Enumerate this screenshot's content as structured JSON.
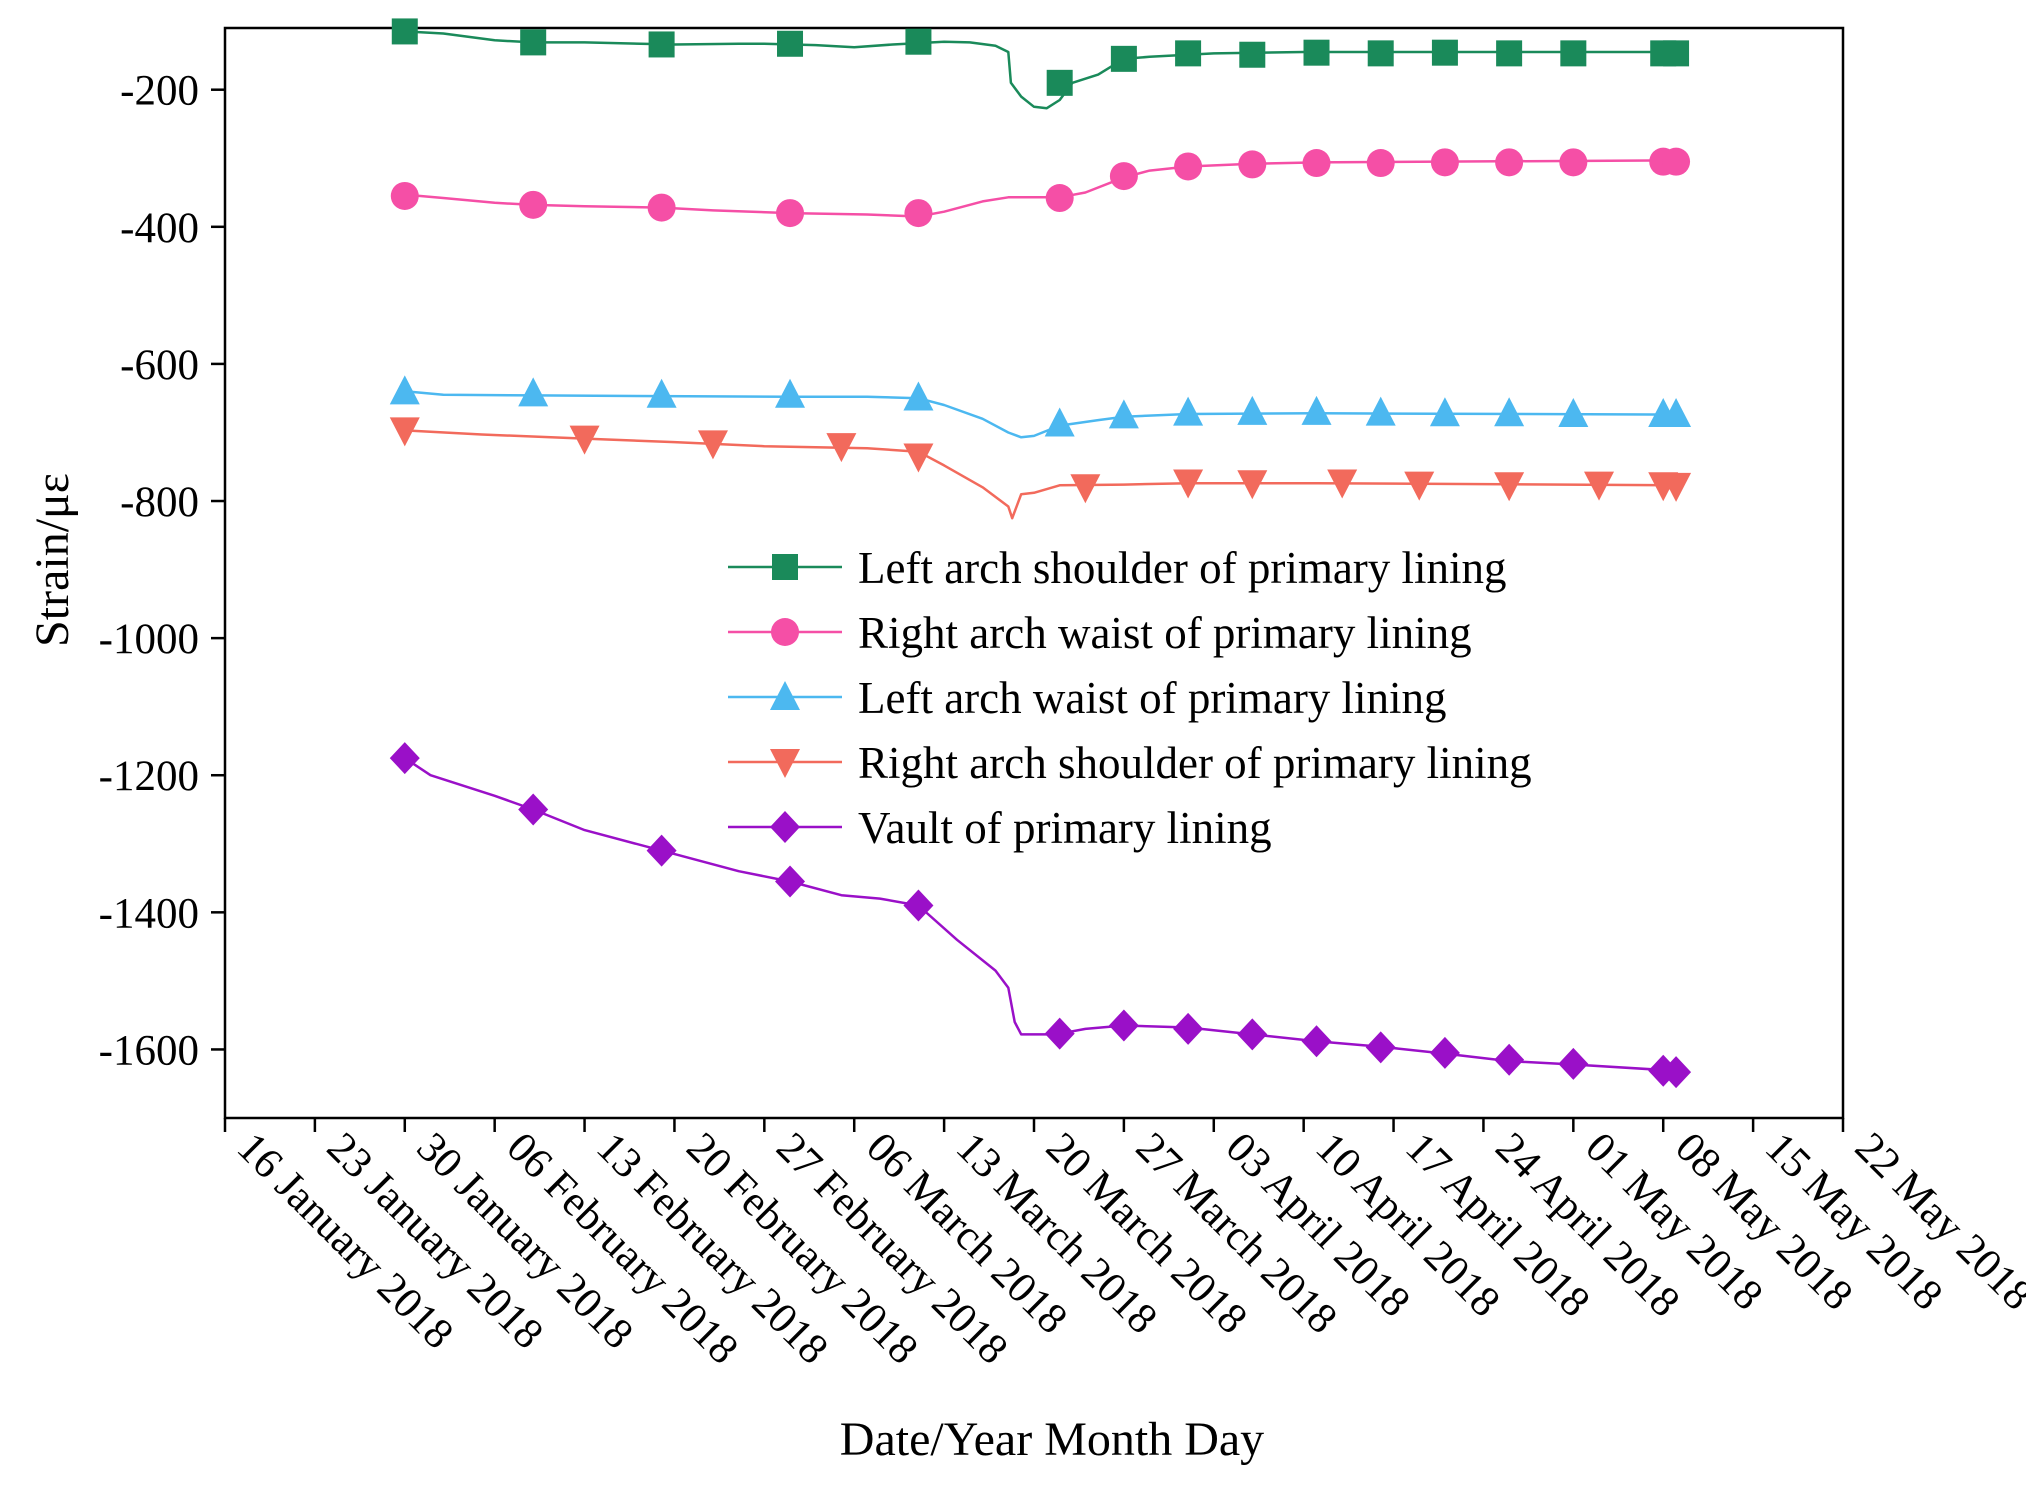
{
  "chart_data": {
    "type": "line",
    "title": "",
    "xlabel": "Date/Year Month Day",
    "ylabel": "Strain/με",
    "x_unit": "days since 16 January 2018",
    "xlim": [
      0,
      126
    ],
    "ylim": [
      -1700,
      -110
    ],
    "x_ticks": [
      {
        "day": 0,
        "label": "16 January 2018"
      },
      {
        "day": 7,
        "label": "23 January 2018"
      },
      {
        "day": 14,
        "label": "30 January 2018"
      },
      {
        "day": 21,
        "label": "06 February 2018"
      },
      {
        "day": 28,
        "label": "13 February 2018"
      },
      {
        "day": 35,
        "label": "20 February 2018"
      },
      {
        "day": 42,
        "label": "27 February 2018"
      },
      {
        "day": 49,
        "label": "06 March 2018"
      },
      {
        "day": 56,
        "label": "13 March 2018"
      },
      {
        "day": 63,
        "label": "20 March 2018"
      },
      {
        "day": 70,
        "label": "27 March 2018"
      },
      {
        "day": 77,
        "label": "03 April 2018"
      },
      {
        "day": 84,
        "label": "10 April 2018"
      },
      {
        "day": 91,
        "label": "17 April 2018"
      },
      {
        "day": 98,
        "label": "24 April 2018"
      },
      {
        "day": 105,
        "label": "01 May 2018"
      },
      {
        "day": 112,
        "label": "08 May 2018"
      },
      {
        "day": 119,
        "label": "15 May 2018"
      },
      {
        "day": 126,
        "label": "22 May 2018"
      }
    ],
    "y_ticks": [
      -200,
      -400,
      -600,
      -800,
      -1000,
      -1200,
      -1400,
      -1600
    ],
    "legend_position": "center-right",
    "series": [
      {
        "name": "Left arch shoulder of primary lining",
        "color": "#1a8a5a",
        "marker": "square",
        "line": [
          [
            14,
            -115
          ],
          [
            17,
            -118
          ],
          [
            21,
            -128
          ],
          [
            24,
            -131
          ],
          [
            28,
            -131
          ],
          [
            35,
            -134
          ],
          [
            40,
            -133
          ],
          [
            42,
            -133
          ],
          [
            46,
            -135
          ],
          [
            49,
            -138
          ],
          [
            52,
            -134
          ],
          [
            56,
            -130
          ],
          [
            58,
            -131
          ],
          [
            60,
            -136
          ],
          [
            61,
            -145
          ],
          [
            61.2,
            -190
          ],
          [
            62,
            -210
          ],
          [
            63,
            -225
          ],
          [
            64,
            -227
          ],
          [
            65,
            -215
          ],
          [
            66,
            -190
          ],
          [
            68,
            -178
          ],
          [
            70,
            -155
          ],
          [
            72,
            -152
          ],
          [
            77,
            -147
          ],
          [
            84,
            -145
          ],
          [
            112,
            -145
          ],
          [
            113,
            -145
          ]
        ],
        "markers": [
          [
            14,
            -115
          ],
          [
            24,
            -131
          ],
          [
            34,
            -134
          ],
          [
            44,
            -133
          ],
          [
            54,
            -130
          ],
          [
            65,
            -190
          ],
          [
            70,
            -155
          ],
          [
            75,
            -147
          ],
          [
            80,
            -149
          ],
          [
            85,
            -146
          ],
          [
            90,
            -147
          ],
          [
            95,
            -146
          ],
          [
            100,
            -147
          ],
          [
            105,
            -147
          ],
          [
            112,
            -147
          ],
          [
            113,
            -147
          ]
        ]
      },
      {
        "name": "Right arch waist of primary lining",
        "color": "#f54fa6",
        "marker": "circle",
        "line": [
          [
            14,
            -353
          ],
          [
            17,
            -358
          ],
          [
            21,
            -365
          ],
          [
            24,
            -368
          ],
          [
            28,
            -370
          ],
          [
            34,
            -372
          ],
          [
            38,
            -376
          ],
          [
            44,
            -380
          ],
          [
            50,
            -382
          ],
          [
            54,
            -385
          ],
          [
            56,
            -378
          ],
          [
            59,
            -363
          ],
          [
            61,
            -357
          ],
          [
            65,
            -357
          ],
          [
            67,
            -350
          ],
          [
            70,
            -328
          ],
          [
            72,
            -318
          ],
          [
            75,
            -312
          ],
          [
            80,
            -308
          ],
          [
            85,
            -306
          ],
          [
            113,
            -303
          ]
        ],
        "markers": [
          [
            14,
            -355
          ],
          [
            24,
            -368
          ],
          [
            34,
            -372
          ],
          [
            44,
            -380
          ],
          [
            54,
            -380
          ],
          [
            65,
            -358
          ],
          [
            70,
            -326
          ],
          [
            75,
            -312
          ],
          [
            80,
            -309
          ],
          [
            85,
            -307
          ],
          [
            90,
            -307
          ],
          [
            95,
            -306
          ],
          [
            100,
            -306
          ],
          [
            105,
            -306
          ],
          [
            112,
            -305
          ],
          [
            113,
            -305
          ]
        ]
      },
      {
        "name": "Left arch waist of primary lining",
        "color": "#4cb8f0",
        "marker": "triangle-up",
        "line": [
          [
            14,
            -640
          ],
          [
            17,
            -645
          ],
          [
            24,
            -646
          ],
          [
            34,
            -647
          ],
          [
            44,
            -648
          ],
          [
            50,
            -648
          ],
          [
            54,
            -650
          ],
          [
            56,
            -660
          ],
          [
            59,
            -680
          ],
          [
            61,
            -700
          ],
          [
            62,
            -707
          ],
          [
            63,
            -705
          ],
          [
            65,
            -690
          ],
          [
            68,
            -682
          ],
          [
            70,
            -677
          ],
          [
            75,
            -673
          ],
          [
            85,
            -672
          ],
          [
            113,
            -674
          ]
        ],
        "markers": [
          [
            14,
            -640
          ],
          [
            24,
            -643
          ],
          [
            34,
            -645
          ],
          [
            44,
            -645
          ],
          [
            54,
            -649
          ],
          [
            65,
            -687
          ],
          [
            70,
            -675
          ],
          [
            75,
            -671
          ],
          [
            80,
            -670
          ],
          [
            85,
            -670
          ],
          [
            90,
            -671
          ],
          [
            95,
            -672
          ],
          [
            100,
            -672
          ],
          [
            105,
            -673
          ],
          [
            112,
            -673
          ],
          [
            113,
            -673
          ]
        ]
      },
      {
        "name": "Right arch shoulder of primary lining",
        "color": "#f26a5c",
        "marker": "triangle-down",
        "line": [
          [
            14,
            -697
          ],
          [
            20,
            -703
          ],
          [
            28,
            -709
          ],
          [
            35,
            -714
          ],
          [
            42,
            -720
          ],
          [
            50,
            -723
          ],
          [
            54,
            -728
          ],
          [
            56,
            -748
          ],
          [
            59,
            -780
          ],
          [
            61,
            -808
          ],
          [
            61.3,
            -825
          ],
          [
            62,
            -790
          ],
          [
            63,
            -788
          ],
          [
            65,
            -777
          ],
          [
            70,
            -776
          ],
          [
            75,
            -774
          ],
          [
            85,
            -774
          ],
          [
            113,
            -777
          ]
        ],
        "markers": [
          [
            14,
            -697
          ],
          [
            28,
            -709
          ],
          [
            38,
            -716
          ],
          [
            48,
            -720
          ],
          [
            54,
            -735
          ],
          [
            67,
            -780
          ],
          [
            75,
            -773
          ],
          [
            80,
            -774
          ],
          [
            87,
            -773
          ],
          [
            93,
            -776
          ],
          [
            100,
            -777
          ],
          [
            107,
            -776
          ],
          [
            112,
            -777
          ],
          [
            113,
            -778
          ]
        ]
      },
      {
        "name": "Vault of primary lining",
        "color": "#9a10c8",
        "marker": "diamond",
        "line": [
          [
            14,
            -1175
          ],
          [
            16,
            -1200
          ],
          [
            21,
            -1230
          ],
          [
            24,
            -1250
          ],
          [
            28,
            -1280
          ],
          [
            34,
            -1310
          ],
          [
            40,
            -1340
          ],
          [
            44,
            -1355
          ],
          [
            48,
            -1375
          ],
          [
            51,
            -1380
          ],
          [
            54,
            -1390
          ],
          [
            57,
            -1440
          ],
          [
            60,
            -1485
          ],
          [
            61,
            -1510
          ],
          [
            61.5,
            -1560
          ],
          [
            62,
            -1578
          ],
          [
            64,
            -1578
          ],
          [
            65,
            -1577
          ],
          [
            67,
            -1570
          ],
          [
            70,
            -1565
          ],
          [
            75,
            -1568
          ],
          [
            80,
            -1578
          ],
          [
            85,
            -1588
          ],
          [
            90,
            -1596
          ],
          [
            95,
            -1606
          ],
          [
            100,
            -1617
          ],
          [
            105,
            -1622
          ],
          [
            112,
            -1630
          ],
          [
            113,
            -1632
          ]
        ],
        "markers": [
          [
            14,
            -1175
          ],
          [
            24,
            -1250
          ],
          [
            34,
            -1310
          ],
          [
            44,
            -1355
          ],
          [
            54,
            -1390
          ],
          [
            65,
            -1577
          ],
          [
            70,
            -1565
          ],
          [
            75,
            -1570
          ],
          [
            80,
            -1578
          ],
          [
            85,
            -1588
          ],
          [
            90,
            -1597
          ],
          [
            95,
            -1605
          ],
          [
            100,
            -1615
          ],
          [
            105,
            -1621
          ],
          [
            112,
            -1631
          ],
          [
            113,
            -1633
          ]
        ]
      }
    ]
  }
}
